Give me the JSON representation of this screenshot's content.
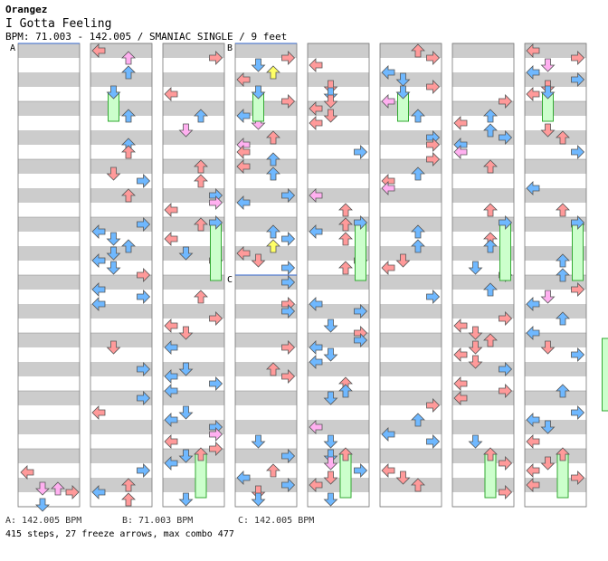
{
  "song": {
    "artist": "Orangez",
    "title": "I Gotta Feeling",
    "bpm_line": "BPM: 71.003 - 142.005 / SMANIAC SINGLE / 9 feet"
  },
  "markers": [
    {
      "label": "A",
      "column": 0,
      "beat": 0
    },
    {
      "label": "B",
      "column": 3,
      "beat": 0
    },
    {
      "label": "C",
      "column": 3,
      "beat": 16
    }
  ],
  "legend": {
    "a": "A: 142.005 BPM",
    "b": "B: 71.003 BPM",
    "c": "C: 142.005 BPM"
  },
  "stats": "415 steps, 27 freeze arrows, max combo 477",
  "colors": {
    "stripe": "#cccccc",
    "measure_line": "#888888",
    "red_arrow": "#ff9a9a",
    "blue_arrow": "#6fb8ff",
    "pink_arrow": "#ffb0f0",
    "yellow_arrow": "#ffff66",
    "freeze_fill": "#ccffcc",
    "freeze_border": "#33aa33"
  },
  "lane_arrows": [
    "left-arrow",
    "down-arrow",
    "up-arrow",
    "right-arrow"
  ]
}
